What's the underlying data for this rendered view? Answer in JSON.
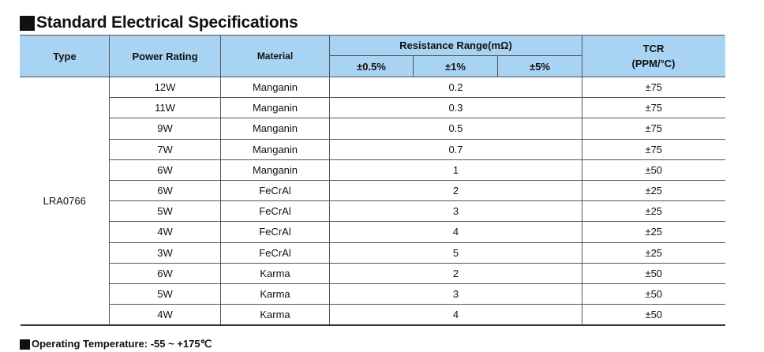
{
  "title": "Standard Electrical Specifications",
  "table": {
    "headers": {
      "type": "Type",
      "power": "Power Rating",
      "material": "Material",
      "resistance": "Resistance Range(mΩ)",
      "tol_05": "±0.5%",
      "tol_1": "±1%",
      "tol_5": "±5%",
      "tcr_line1": "TCR",
      "tcr_line2": "(PPM/°C)"
    },
    "type_value": "LRA0766",
    "rows": [
      {
        "power": "12W",
        "material": "Manganin",
        "resistance": "0.2",
        "tcr": "±75"
      },
      {
        "power": "11W",
        "material": "Manganin",
        "resistance": "0.3",
        "tcr": "±75"
      },
      {
        "power": "9W",
        "material": "Manganin",
        "resistance": "0.5",
        "tcr": "±75"
      },
      {
        "power": "7W",
        "material": "Manganin",
        "resistance": "0.7",
        "tcr": "±75"
      },
      {
        "power": "6W",
        "material": "Manganin",
        "resistance": "1",
        "tcr": "±50"
      },
      {
        "power": "6W",
        "material": "FeCrAl",
        "resistance": "2",
        "tcr": "±25"
      },
      {
        "power": "5W",
        "material": "FeCrAl",
        "resistance": "3",
        "tcr": "±25"
      },
      {
        "power": "4W",
        "material": "FeCrAl",
        "resistance": "4",
        "tcr": "±25"
      },
      {
        "power": "3W",
        "material": "FeCrAl",
        "resistance": "5",
        "tcr": "±25"
      },
      {
        "power": "6W",
        "material": "Karma",
        "resistance": "2",
        "tcr": "±50"
      },
      {
        "power": "5W",
        "material": "Karma",
        "resistance": "3",
        "tcr": "±50"
      },
      {
        "power": "4W",
        "material": "Karma",
        "resistance": "4",
        "tcr": "±50"
      }
    ]
  },
  "footer": "Operating Temperature: -55 ~ +175℃",
  "colors": {
    "header_bg": "#a9d3f3"
  }
}
